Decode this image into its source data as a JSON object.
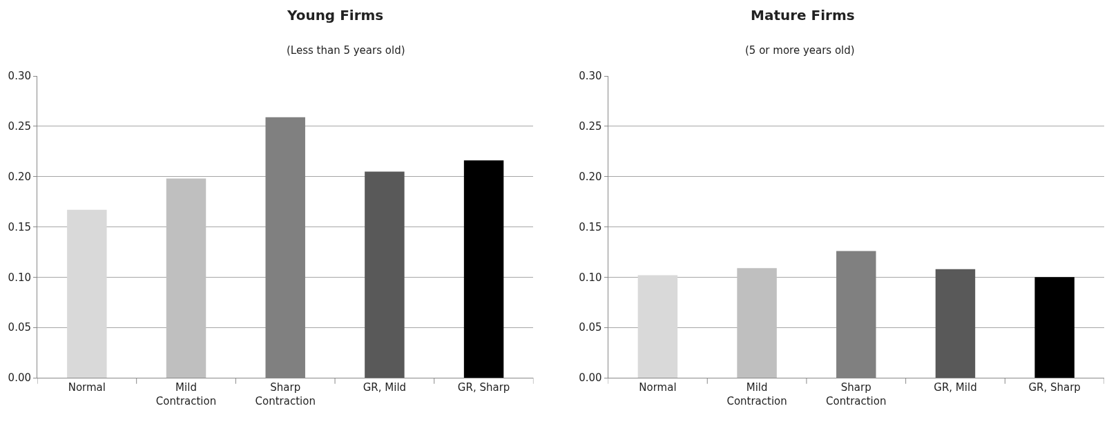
{
  "chart_data": [
    {
      "type": "bar",
      "title": "Young Firms",
      "subtitle": "(Less than 5 years old)",
      "categories": [
        "Normal",
        "Mild\nContraction",
        "Sharp\nContraction",
        "GR, Mild",
        "GR, Sharp"
      ],
      "values": [
        0.167,
        0.198,
        0.259,
        0.205,
        0.216
      ],
      "colors": [
        "#d9d9d9",
        "#bfbfbf",
        "#808080",
        "#595959",
        "#000000"
      ],
      "ylim": [
        0,
        0.3
      ],
      "yticks": [
        {
          "value": 0,
          "label": "0.00"
        },
        {
          "value": 0.05,
          "label": "0.05"
        },
        {
          "value": 0.1,
          "label": "0.10"
        },
        {
          "value": 0.15,
          "label": "0.15"
        },
        {
          "value": 0.2,
          "label": "0.20"
        },
        {
          "value": 0.25,
          "label": "0.25"
        },
        {
          "value": 0.3,
          "label": "0.30"
        }
      ],
      "grid": "y",
      "legend": false
    },
    {
      "type": "bar",
      "title": "Mature Firms",
      "subtitle": "(5 or more years old)",
      "categories": [
        "Normal",
        "Mild\nContraction",
        "Sharp\nContraction",
        "GR, Mild",
        "GR, Sharp"
      ],
      "values": [
        0.102,
        0.109,
        0.126,
        0.108,
        0.1
      ],
      "colors": [
        "#d9d9d9",
        "#bfbfbf",
        "#808080",
        "#595959",
        "#000000"
      ],
      "ylim": [
        0,
        0.3
      ],
      "yticks": [
        {
          "value": 0,
          "label": "0.00"
        },
        {
          "value": 0.05,
          "label": "0.05"
        },
        {
          "value": 0.1,
          "label": "0.10"
        },
        {
          "value": 0.15,
          "label": "0.15"
        },
        {
          "value": 0.2,
          "label": "0.20"
        },
        {
          "value": 0.25,
          "label": "0.25"
        },
        {
          "value": 0.3,
          "label": "0.30"
        }
      ],
      "grid": "y",
      "legend": false
    }
  ]
}
